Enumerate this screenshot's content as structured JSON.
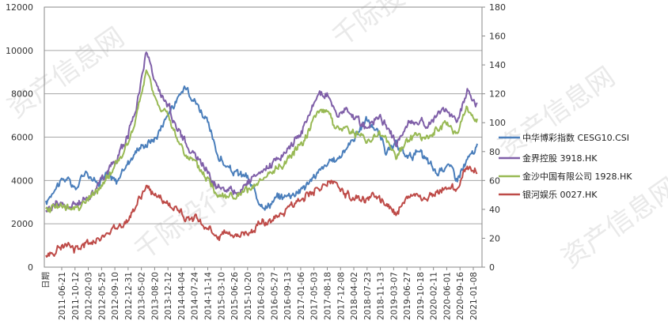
{
  "chart_data": {
    "type": "line",
    "xlabel": "日期",
    "watermark": "资产信息网 千际投行",
    "left_axis": {
      "min": 0,
      "max": 12000,
      "step": 2000,
      "ticks": [
        "0",
        "2000",
        "4000",
        "6000",
        "8000",
        "10000",
        "12000"
      ]
    },
    "right_axis": {
      "min": 0,
      "max": 180,
      "step": 20,
      "ticks": [
        "0",
        "20",
        "40",
        "60",
        "80",
        "100",
        "120",
        "140",
        "160",
        "180"
      ]
    },
    "x_ticks": [
      "2011-06-21",
      "2011-10-12",
      "2012-02-03",
      "2012-05-25",
      "2012-09-10",
      "2012-12-31",
      "2013-05-02",
      "2013-08-20",
      "2013-12-12",
      "2014-04-04",
      "2014-07-24",
      "2014-11-14",
      "2015-03-10",
      "2015-06-26",
      "2015-10-20",
      "2016-02-03",
      "2016-05-27",
      "2016-09-13",
      "2017-01-06",
      "2017-05-03",
      "2017-08-18",
      "2017-12-08",
      "2018-04-02",
      "2018-07-23",
      "2018-11-13",
      "2019-03-07",
      "2019-06-27",
      "2019-10-18",
      "2020-02-11",
      "2020-06-01",
      "2020-09-16",
      "2021-01-08"
    ],
    "series": [
      {
        "name": "中华博彩指数 CESG10.CSI",
        "axis": "left",
        "color": "#4a7ebb",
        "values": [
          2900,
          3800,
          4100,
          3600,
          4500,
          3900,
          4300,
          3900,
          4700,
          5400,
          5700,
          6000,
          7000,
          7600,
          8400,
          7600,
          6800,
          5300,
          4600,
          4300,
          4200,
          3200,
          2800,
          3200,
          3300,
          3500,
          3800,
          4300,
          4700,
          5000,
          5500,
          6200,
          6800,
          6300,
          5300,
          5600,
          5100,
          5300,
          4900,
          4300,
          4800,
          4100,
          4900,
          5500
        ]
      },
      {
        "name": "金界控股 3918.HK",
        "axis": "right",
        "color": "#7f5fa8",
        "values": [
          38,
          45,
          41,
          43,
          47,
          55,
          65,
          75,
          88,
          110,
          150,
          125,
          115,
          98,
          85,
          76,
          68,
          56,
          55,
          52,
          58,
          62,
          68,
          75,
          80,
          90,
          100,
          118,
          120,
          105,
          108,
          102,
          96,
          104,
          98,
          85,
          99,
          102,
          98,
          105,
          110,
          100,
          124,
          112
        ]
      },
      {
        "name": "金沙中国有限公司  1928.HK",
        "axis": "right",
        "color": "#98b954",
        "values": [
          38,
          44,
          40,
          42,
          45,
          52,
          60,
          72,
          82,
          102,
          136,
          115,
          106,
          90,
          78,
          70,
          62,
          52,
          50,
          48,
          52,
          56,
          62,
          68,
          74,
          82,
          92,
          108,
          110,
          95,
          97,
          92,
          87,
          93,
          88,
          75,
          89,
          92,
          88,
          95,
          99,
          92,
          110,
          100
        ]
      },
      {
        "name": "银河娱乐 0027.HK",
        "axis": "right",
        "color": "#be4b48",
        "values": [
          7,
          12,
          14,
          13,
          16,
          18,
          24,
          27,
          32,
          42,
          56,
          48,
          45,
          40,
          35,
          33,
          28,
          22,
          24,
          22,
          24,
          28,
          32,
          36,
          40,
          45,
          50,
          54,
          58,
          55,
          50,
          48,
          46,
          50,
          44,
          38,
          47,
          50,
          47,
          52,
          56,
          54,
          70,
          65
        ]
      }
    ]
  }
}
